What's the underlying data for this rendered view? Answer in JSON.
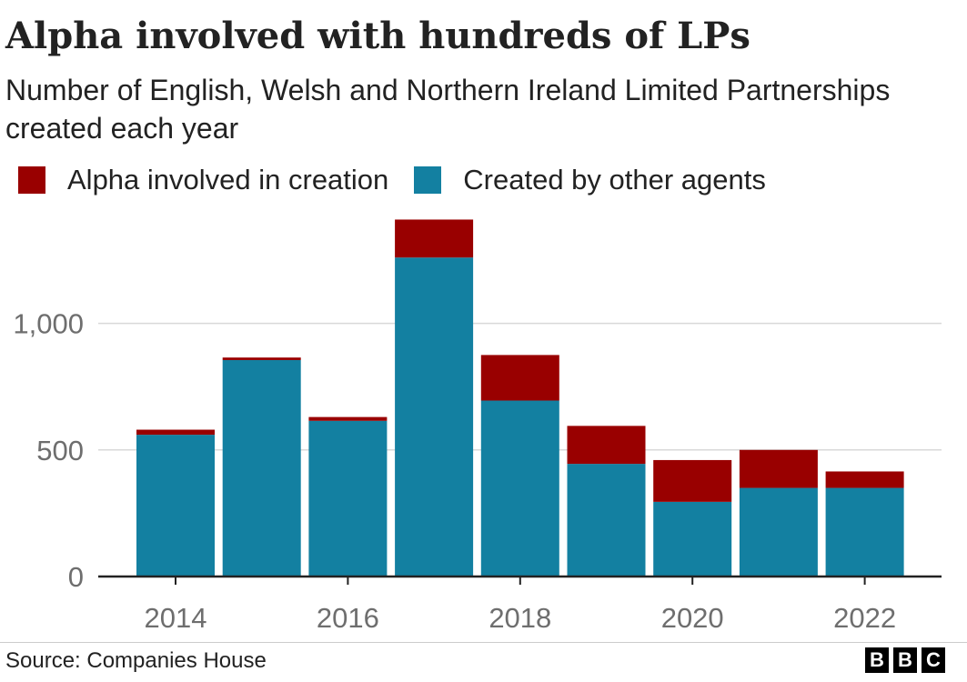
{
  "chart_data": {
    "type": "bar",
    "stacked": true,
    "title": "Alpha involved with hundreds of LPs",
    "subtitle": "Number of English, Welsh and Northern Ireland Limited Partnerships created each year",
    "categories": [
      "2014",
      "2015",
      "2016",
      "2017",
      "2018",
      "2019",
      "2020",
      "2021",
      "2022"
    ],
    "x_tick_labels": [
      "2014",
      "2016",
      "2018",
      "2020",
      "2022"
    ],
    "y_tick_labels": [
      "0",
      "500",
      "1,000"
    ],
    "y_ticks": [
      0,
      500,
      1000
    ],
    "ylim": [
      0,
      1450
    ],
    "grid": true,
    "legend_position": "top-left",
    "series": [
      {
        "name": "Created by other agents",
        "color": "#1380a1",
        "values": [
          560,
          855,
          615,
          1260,
          695,
          445,
          295,
          350,
          350
        ]
      },
      {
        "name": "Alpha involved in creation",
        "color": "#990000",
        "values": [
          20,
          10,
          15,
          150,
          180,
          150,
          165,
          150,
          65
        ]
      }
    ],
    "legend": [
      {
        "label": "Alpha involved in creation",
        "color": "#990000"
      },
      {
        "label": "Created by other agents",
        "color": "#1380a1"
      }
    ]
  },
  "footer": {
    "source": "Source: Companies House",
    "logo_letters": [
      "B",
      "B",
      "C"
    ]
  }
}
